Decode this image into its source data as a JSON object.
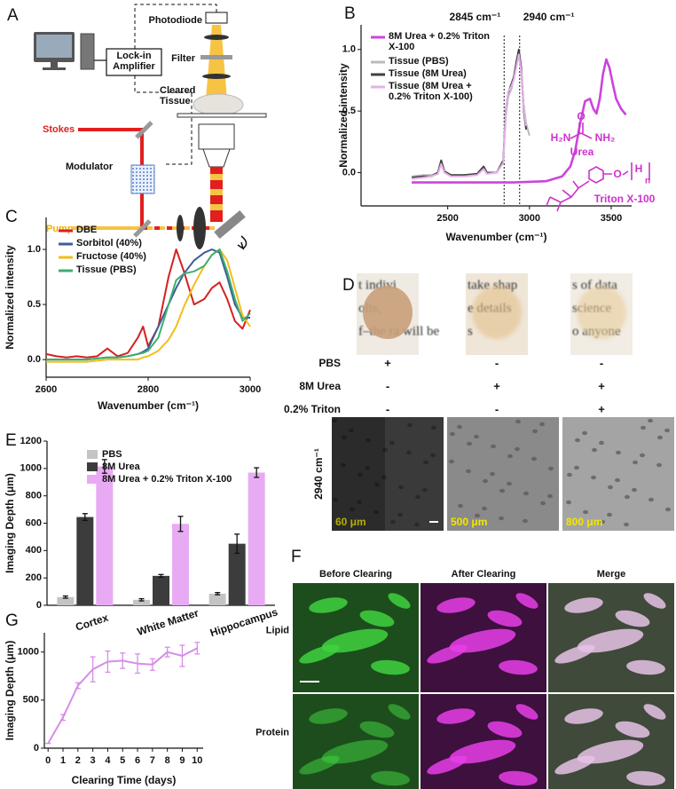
{
  "panel_labels": [
    "A",
    "B",
    "C",
    "D",
    "E",
    "F",
    "G"
  ],
  "diagram": {
    "labels": [
      "Photodiode",
      "Filter",
      "Lock-in Amplifier",
      "Cleared Tissue",
      "Stokes",
      "Modulator",
      "Pump"
    ]
  },
  "chart_data": [
    {
      "type": "line",
      "x_label": "Wavenumber (cm⁻¹)",
      "y_label": "Normalized intensity",
      "xlim": [
        1970,
        3625
      ],
      "xticks": [
        2500,
        3000,
        3500
      ],
      "ylim": [
        -0.27,
        1.2
      ],
      "yticks": [
        {
          "value": 0,
          "label": "0.0"
        },
        {
          "value": 0.5,
          "label": "0.5"
        },
        {
          "value": 1,
          "label": "1.0"
        }
      ],
      "series": [
        {
          "name": "8M Urea + 0.2% Triton X-100",
          "color": "#cc44dd",
          "x": [
            2280,
            2600,
            2900,
            3100,
            3200,
            3250,
            3280,
            3310,
            3340,
            3370,
            3390,
            3410,
            3430,
            3450,
            3470,
            3490,
            3510,
            3530,
            3560,
            3590
          ],
          "values": [
            -0.08,
            -0.08,
            -0.08,
            -0.07,
            -0.03,
            0.05,
            0.18,
            0.4,
            0.58,
            0.6,
            0.52,
            0.48,
            0.6,
            0.8,
            0.92,
            0.85,
            0.72,
            0.6,
            0.52,
            0.47
          ]
        },
        {
          "name": "Tissue (PBS)",
          "color": "#bbbbbb",
          "x": [
            2280,
            2350,
            2400,
            2440,
            2460,
            2480,
            2520,
            2600,
            2680,
            2720,
            2740,
            2800,
            2840,
            2855,
            2870,
            2890,
            2905,
            2920,
            2935,
            2950,
            2965,
            2980,
            3000
          ],
          "values": [
            -0.03,
            -0.02,
            -0.02,
            0.0,
            0.08,
            0.0,
            -0.02,
            -0.02,
            -0.01,
            0.04,
            0.0,
            0.0,
            0.1,
            0.45,
            0.62,
            0.68,
            0.78,
            0.88,
            0.98,
            0.8,
            0.55,
            0.4,
            0.3
          ]
        },
        {
          "name": "Tissue (8M Urea)",
          "color": "#404040",
          "x": [
            2280,
            2350,
            2400,
            2440,
            2460,
            2480,
            2520,
            2600,
            2680,
            2720,
            2740,
            2800,
            2840,
            2855,
            2870,
            2890,
            2905,
            2920,
            2935,
            2950,
            2965,
            2980
          ],
          "values": [
            -0.04,
            -0.03,
            -0.03,
            0.0,
            0.1,
            0.01,
            -0.02,
            -0.02,
            -0.01,
            0.05,
            0.0,
            0.0,
            0.1,
            0.5,
            0.65,
            0.72,
            0.78,
            0.9,
            1.0,
            0.85,
            0.5,
            0.35
          ]
        },
        {
          "name": "Tissue (8M Urea + 0.2% Triton X-100)",
          "color": "#e6b0ea",
          "x": [
            2280,
            2350,
            2400,
            2440,
            2460,
            2480,
            2520,
            2600,
            2680,
            2720,
            2740,
            2800,
            2840,
            2855,
            2870,
            2890,
            2905,
            2920,
            2935,
            2950,
            2965,
            2980
          ],
          "values": [
            -0.05,
            -0.04,
            -0.03,
            -0.01,
            0.07,
            0.0,
            -0.03,
            -0.03,
            -0.02,
            0.03,
            -0.01,
            0.0,
            0.08,
            0.48,
            0.66,
            0.7,
            0.76,
            0.86,
            0.96,
            0.82,
            0.52,
            0.38
          ]
        }
      ],
      "annotations": [
        {
          "text": "2845 cm⁻¹",
          "x": 2845
        },
        {
          "text": "2940 cm⁻¹",
          "x": 2940
        }
      ],
      "structure_labels": [
        "O",
        "H₂N",
        "NH₂",
        "Urea",
        "O",
        "H",
        "n",
        "Triton X-100"
      ]
    },
    {
      "type": "line",
      "x_label": "Wavenumber (cm⁻¹)",
      "y_label": "Normalized intensity",
      "xlim": [
        2600,
        3000
      ],
      "xticks": [
        2600,
        2800,
        3000
      ],
      "ylim": [
        -0.16,
        1.29
      ],
      "yticks": [
        {
          "value": 0,
          "label": "0.0"
        },
        {
          "value": 0.5,
          "label": "0.5"
        },
        {
          "value": 1,
          "label": "1.0"
        }
      ],
      "series": [
        {
          "name": "DBE",
          "color": "#d62020",
          "x": [
            2600,
            2620,
            2640,
            2660,
            2680,
            2700,
            2720,
            2740,
            2760,
            2780,
            2790,
            2800,
            2820,
            2840,
            2855,
            2870,
            2890,
            2910,
            2925,
            2940,
            2955,
            2970,
            2985,
            3000
          ],
          "values": [
            0.05,
            0.03,
            0.02,
            0.03,
            0.02,
            0.03,
            0.1,
            0.03,
            0.06,
            0.2,
            0.3,
            0.12,
            0.3,
            0.75,
            1.0,
            0.8,
            0.5,
            0.55,
            0.65,
            0.7,
            0.55,
            0.35,
            0.28,
            0.45
          ]
        },
        {
          "name": "Sorbitol (40%)",
          "color": "#3a5f9a",
          "x": [
            2600,
            2620,
            2640,
            2660,
            2680,
            2700,
            2720,
            2740,
            2760,
            2780,
            2790,
            2800,
            2820,
            2840,
            2855,
            2870,
            2890,
            2910,
            2925,
            2940,
            2955,
            2970,
            2985,
            3000
          ],
          "values": [
            0,
            0,
            0,
            0,
            0,
            0.01,
            0.02,
            0.02,
            0.03,
            0.05,
            0.07,
            0.1,
            0.3,
            0.5,
            0.65,
            0.78,
            0.9,
            0.97,
            1.0,
            0.97,
            0.75,
            0.5,
            0.38,
            0.38
          ]
        },
        {
          "name": "Fructose (40%)",
          "color": "#f2bd1d",
          "x": [
            2600,
            2620,
            2640,
            2660,
            2680,
            2700,
            2720,
            2740,
            2760,
            2780,
            2790,
            2800,
            2820,
            2840,
            2855,
            2870,
            2890,
            2910,
            2925,
            2940,
            2955,
            2970,
            2985,
            3000
          ],
          "values": [
            -0.02,
            -0.02,
            -0.02,
            -0.02,
            -0.02,
            -0.01,
            0,
            0,
            0,
            0,
            0.02,
            0.03,
            0.08,
            0.18,
            0.3,
            0.48,
            0.68,
            0.85,
            0.95,
            1.0,
            0.9,
            0.65,
            0.4,
            0.3
          ]
        },
        {
          "name": "Tissue (PBS)",
          "color": "#3fae6e",
          "x": [
            2600,
            2620,
            2640,
            2660,
            2680,
            2700,
            2720,
            2740,
            2760,
            2780,
            2790,
            2800,
            2820,
            2840,
            2855,
            2870,
            2890,
            2910,
            2925,
            2940,
            2955,
            2970,
            2985,
            3000
          ],
          "values": [
            0,
            0,
            0,
            0,
            0,
            0.01,
            0.02,
            0.02,
            0.03,
            0.05,
            0.06,
            0.08,
            0.2,
            0.5,
            0.72,
            0.78,
            0.8,
            0.85,
            0.95,
            1.0,
            0.8,
            0.55,
            0.35,
            0.42
          ]
        }
      ]
    },
    {
      "type": "bar",
      "y_label": "Imaging Depth (μm)",
      "categories": [
        "Cortex",
        "White Matter",
        "Hippocampus"
      ],
      "ylim": [
        0,
        1200
      ],
      "yticks": [
        0,
        200,
        400,
        600,
        800,
        1000,
        1200
      ],
      "series": [
        {
          "name": "PBS",
          "color": "#c4c4c4",
          "values": [
            60,
            40,
            85
          ],
          "errors": [
            8,
            8,
            8
          ]
        },
        {
          "name": "8M Urea",
          "color": "#3c3c3c",
          "values": [
            645,
            215,
            450
          ],
          "errors": [
            25,
            10,
            70
          ]
        },
        {
          "name": "8M Urea + 0.2% Triton X-100",
          "color": "#e9aaf4",
          "values": [
            1015,
            595,
            970
          ],
          "errors": [
            50,
            55,
            35
          ]
        }
      ]
    },
    {
      "type": "line",
      "x_label": "Clearing Time (days)",
      "y_label": "Imaging Depth (μm)",
      "xlim": [
        -0.25,
        10.4
      ],
      "xticks": [
        0,
        1,
        2,
        3,
        4,
        5,
        6,
        7,
        8,
        9,
        10
      ],
      "ylim": [
        0,
        1200
      ],
      "yticks": [
        0,
        500,
        1000
      ],
      "series": [
        {
          "color": "#d88ce8",
          "x": [
            0,
            1,
            2,
            3,
            4,
            5,
            6,
            7,
            8,
            9,
            10
          ],
          "values": [
            50,
            320,
            650,
            820,
            900,
            910,
            880,
            870,
            1000,
            960,
            1040
          ],
          "errors": [
            0,
            30,
            30,
            130,
            110,
            80,
            100,
            60,
            50,
            110,
            60
          ]
        }
      ]
    }
  ],
  "panel_d": {
    "rows": [
      "PBS",
      "8M Urea",
      "0.2% Triton"
    ],
    "signs": [
      [
        "+",
        "-",
        "-"
      ],
      [
        "-",
        "+",
        "+"
      ],
      [
        "-",
        "-",
        "+"
      ]
    ],
    "photo_text": [
      [
        "t indivi",
        "olis,",
        "f–the ra  will be"
      ],
      [
        "take shap",
        "e details",
        "s"
      ],
      [
        "s of data",
        "science",
        "o anyone"
      ]
    ],
    "channel": "2940 cm⁻¹",
    "depths": [
      "60 μm",
      "500 μm",
      "800 μm"
    ]
  },
  "panel_f": {
    "columns": [
      "Before Clearing",
      "After Clearing",
      "Merge"
    ],
    "rows": [
      "Lipid",
      "Protein"
    ]
  }
}
